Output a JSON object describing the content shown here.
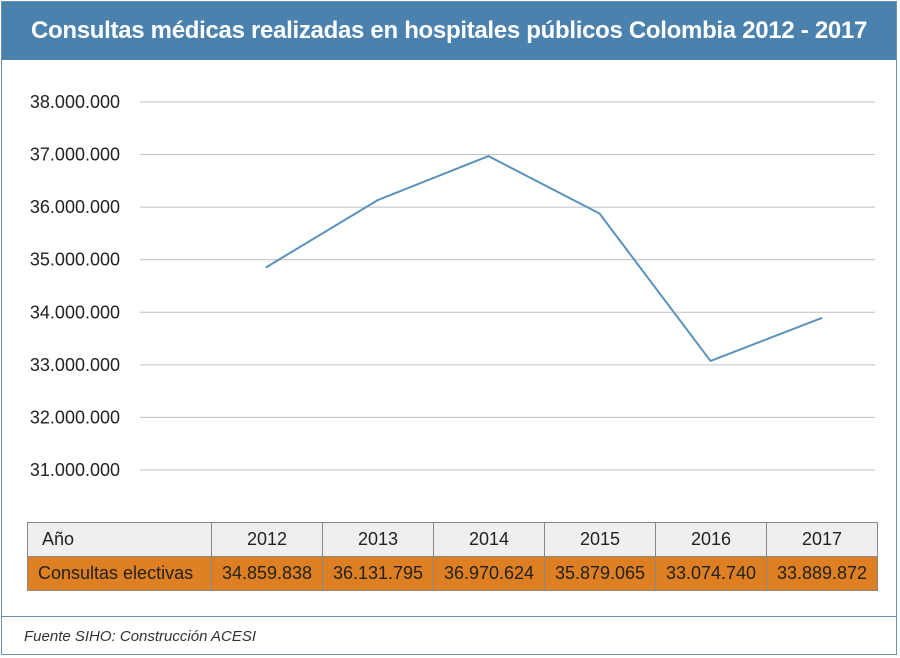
{
  "title": "Consultas médicas realizadas en hospitales públicos Colombia 2012 - 2017",
  "source": "Fuente SIHO: Construcción ACESI",
  "table": {
    "header_label": "Año",
    "row_label": "Consultas electivas",
    "years": [
      "2012",
      "2013",
      "2014",
      "2015",
      "2016",
      "2017"
    ],
    "values": [
      "34.859.838",
      "36.131.795",
      "36.970.624",
      "35.879.065",
      "33.074.740",
      "33.889.872"
    ]
  },
  "colors": {
    "title_bar": "#4b82ad",
    "line": "#5b92ba",
    "row_highlight": "#dd7f22",
    "header_row": "#efefef",
    "grid": "#bfbfbf"
  },
  "chart_data": {
    "type": "line",
    "title": "Consultas médicas realizadas en hospitales públicos Colombia 2012 - 2017",
    "categories": [
      "2012",
      "2013",
      "2014",
      "2015",
      "2016",
      "2017"
    ],
    "series": [
      {
        "name": "Consultas electivas",
        "values": [
          34859838,
          36131795,
          36970624,
          35879065,
          33074740,
          33889872
        ]
      }
    ],
    "ylim": [
      31000000,
      38000000
    ],
    "yticks": [
      38000000,
      37000000,
      36000000,
      35000000,
      34000000,
      33000000,
      32000000,
      31000000
    ],
    "ytick_labels": [
      "38.000.000",
      "37.000.000",
      "36.000.000",
      "35.000.000",
      "34.000.000",
      "33.000.000",
      "32.000.000",
      "31.000.000"
    ],
    "grid": true,
    "legend": "none"
  }
}
